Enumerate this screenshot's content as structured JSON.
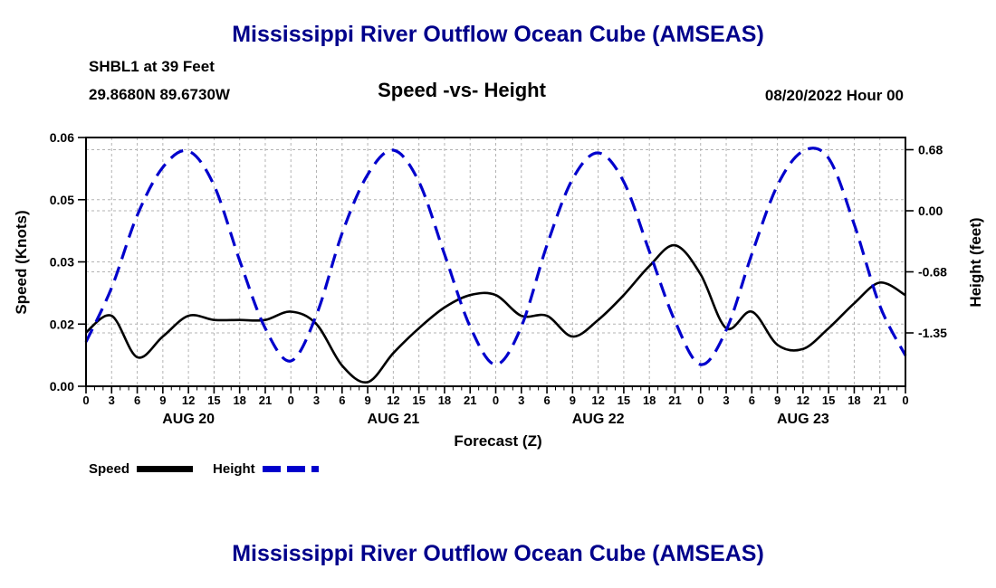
{
  "chart_data": {
    "type": "line",
    "title": "Mississippi River Outflow Ocean Cube (AMSEAS)",
    "station": "SHBL1 at 39 Feet",
    "coords": "29.8680N 89.6730W",
    "subtitle": "Speed -vs- Height",
    "datetime": "08/20/2022 Hour 00",
    "xlabel": "Forecast (Z)",
    "bottom_title": "Mississippi River Outflow Ocean Cube (AMSEAS)",
    "grid": true,
    "legend_position": "bottom-left",
    "x_hours": [
      0,
      3,
      6,
      9,
      12,
      15,
      18,
      21,
      24,
      27,
      30,
      33,
      36,
      39,
      42,
      45,
      48,
      51,
      54,
      57,
      60,
      63,
      66,
      69,
      72,
      75,
      78,
      81,
      84,
      87,
      90,
      93,
      96
    ],
    "x_tick_labels": [
      "0",
      "3",
      "6",
      "9",
      "12",
      "15",
      "18",
      "21",
      "0",
      "3",
      "6",
      "9",
      "12",
      "15",
      "18",
      "21",
      "0",
      "3",
      "6",
      "9",
      "12",
      "15",
      "18",
      "21",
      "0",
      "3",
      "6",
      "9",
      "12",
      "15",
      "18",
      "21",
      "0"
    ],
    "day_labels": [
      {
        "label": "AUG 20",
        "hour": 12
      },
      {
        "label": "AUG 21",
        "hour": 36
      },
      {
        "label": "AUG 22",
        "hour": 60
      },
      {
        "label": "AUG 23",
        "hour": 84
      }
    ],
    "left_axis": {
      "label": "Speed (Knots)",
      "min": 0,
      "max": 0.06,
      "ticks": [
        0,
        0.015,
        0.03,
        0.045,
        0.06
      ],
      "tick_labels": [
        "0.00",
        "0.02",
        "0.03",
        "0.05",
        "0.06"
      ]
    },
    "right_axis": {
      "label": "Height (feet)",
      "min": -1.94,
      "max": 0.81,
      "ticks": [
        0.675,
        0,
        -0.675,
        -1.35
      ],
      "tick_labels": [
        "0.68",
        "0.00",
        "-0.68",
        "-1.35"
      ]
    },
    "series": [
      {
        "name": "Speed",
        "axis": "left",
        "unit": "knots",
        "color": "#000000",
        "line_style": "solid",
        "values": [
          0.013,
          0.017,
          0.007,
          0.012,
          0.017,
          0.016,
          0.016,
          0.016,
          0.018,
          0.015,
          0.005,
          0.001,
          0.008,
          0.014,
          0.019,
          0.022,
          0.022,
          0.017,
          0.017,
          0.012,
          0.016,
          0.022,
          0.029,
          0.034,
          0.027,
          0.014,
          0.018,
          0.01,
          0.009,
          0.014,
          0.02,
          0.025,
          0.022
        ]
      },
      {
        "name": "Height",
        "axis": "right",
        "unit": "feet",
        "color": "#0000cc",
        "line_style": "dashed",
        "values": [
          -1.45,
          -0.85,
          -0.05,
          0.48,
          0.66,
          0.28,
          -0.55,
          -1.3,
          -1.66,
          -1.15,
          -0.25,
          0.4,
          0.67,
          0.32,
          -0.48,
          -1.28,
          -1.7,
          -1.28,
          -0.38,
          0.35,
          0.64,
          0.32,
          -0.45,
          -1.22,
          -1.7,
          -1.32,
          -0.48,
          0.28,
          0.66,
          0.58,
          -0.15,
          -1.05,
          -1.6
        ]
      }
    ],
    "legend": [
      {
        "label": "Speed"
      },
      {
        "label": "Height"
      }
    ],
    "colors": {
      "speed": "#000000",
      "height": "#0000cc",
      "grid": "#b3b3b3",
      "frame": "#000000",
      "title": "#00008b"
    }
  }
}
